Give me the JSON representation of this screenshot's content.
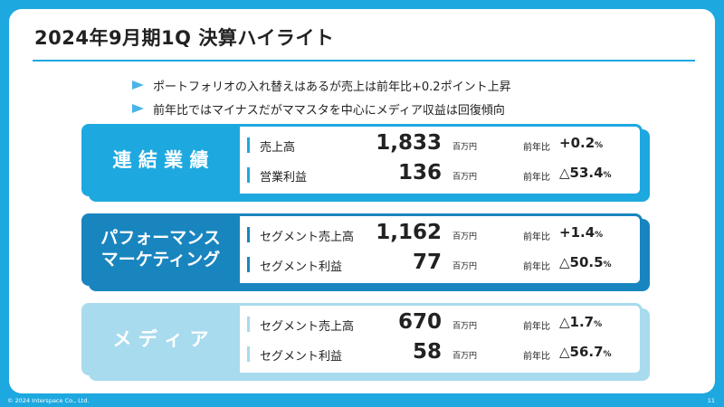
{
  "title": "2024年9月期1Q 決算ハイライト",
  "bullets": [
    "ポートフォリオの入れ替えはあるが売上は前年比+0.2ポイント上昇",
    "前年比ではマイナスだがママスタを中心にメディア収益は回復傾向"
  ],
  "segments": [
    {
      "label": "連 結 業 績",
      "metrics": [
        {
          "name": "売上高",
          "value": "1,833",
          "unit": "百万円",
          "yoy_label": "前年比",
          "change": "+0.2",
          "pct": "%"
        },
        {
          "name": "営業利益",
          "value": "136",
          "unit": "百万円",
          "yoy_label": "前年比",
          "change": "△53.4",
          "pct": "%"
        }
      ]
    },
    {
      "label": "パフォーマンス\nマーケティング",
      "metrics": [
        {
          "name": "セグメント売上高",
          "value": "1,162",
          "unit": "百万円",
          "yoy_label": "前年比",
          "change": "+1.4",
          "pct": "%"
        },
        {
          "name": "セグメント利益",
          "value": "77",
          "unit": "百万円",
          "yoy_label": "前年比",
          "change": "△50.5",
          "pct": "%"
        }
      ]
    },
    {
      "label": "メ デ ィ ア",
      "metrics": [
        {
          "name": "セグメント売上高",
          "value": "670",
          "unit": "百万円",
          "yoy_label": "前年比",
          "change": "△1.7",
          "pct": "%"
        },
        {
          "name": "セグメント利益",
          "value": "58",
          "unit": "百万円",
          "yoy_label": "前年比",
          "change": "△56.7",
          "pct": "%"
        }
      ]
    }
  ],
  "colors": {
    "background": "#1ea8e0",
    "segment_1": "#1ea8e0",
    "segment_2": "#1985bf",
    "segment_3": "#a8dbee"
  },
  "footer": "© 2024 Interspace Co., Ltd.",
  "page_number": "11"
}
